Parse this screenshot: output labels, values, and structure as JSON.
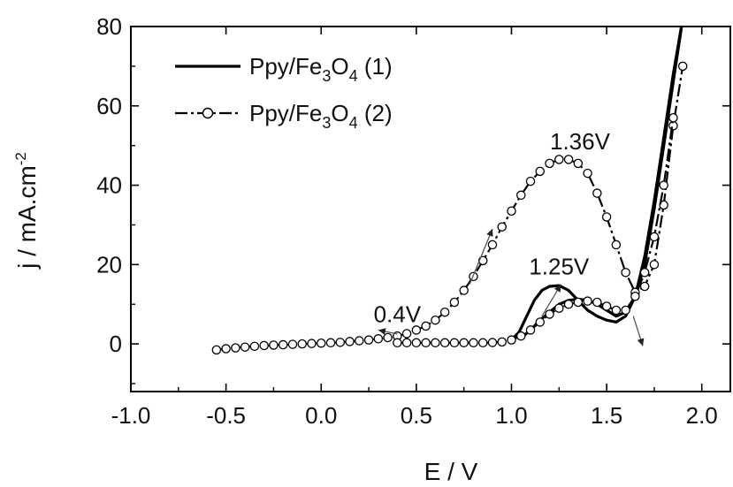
{
  "chart_data": {
    "type": "line",
    "xlabel": "E / V",
    "ylabel_parts": [
      "j / mA.cm",
      "-2"
    ],
    "xlim": [
      -1.0,
      2.15
    ],
    "ylim": [
      -12,
      80
    ],
    "xticks": [
      -1.0,
      -0.5,
      0.0,
      0.5,
      1.0,
      1.5,
      2.0
    ],
    "xtick_labels": [
      "-1.0",
      "-0.5",
      "0.0",
      "0.5",
      "1.0",
      "1.5",
      "2.0"
    ],
    "yticks": [
      0,
      20,
      40,
      60,
      80
    ],
    "ytick_labels": [
      "0",
      "20",
      "40",
      "60",
      "80"
    ],
    "grid": false,
    "legend_position": "top-left",
    "series": [
      {
        "name_parts": [
          "Ppy/Fe",
          "3",
          "O",
          "4",
          " (1)"
        ],
        "style": "solid",
        "segments": [
          {
            "x": [
              1.0,
              1.04,
              1.08,
              1.12,
              1.16,
              1.2,
              1.25,
              1.3,
              1.35,
              1.4,
              1.45,
              1.5,
              1.55,
              1.6,
              1.65,
              1.7,
              1.75,
              1.8,
              1.85,
              1.9
            ],
            "y": [
              1,
              3,
              7,
              11,
              13.5,
              14.5,
              14.7,
              13.5,
              11,
              8.5,
              7,
              6,
              5.5,
              7,
              12,
              22,
              36,
              52,
              68,
              82
            ]
          },
          {
            "x": [
              1.05,
              1.1,
              1.15,
              1.2,
              1.25,
              1.3,
              1.35,
              1.4,
              1.45,
              1.5,
              1.55,
              1.6,
              1.65,
              1.7,
              1.75,
              1.8,
              1.85,
              1.9
            ],
            "y": [
              1.5,
              3.5,
              6,
              8,
              10,
              11,
              11.3,
              11,
              10,
              8.5,
              7,
              8,
              12,
              20,
              34,
              50,
              66,
              82
            ]
          }
        ]
      },
      {
        "name_parts": [
          "Ppy/Fe",
          "3",
          "O",
          "4",
          " (2)"
        ],
        "style": "dash-dot-circle",
        "segments": [
          {
            "x": [
              -0.55,
              -0.5,
              -0.45,
              -0.4,
              -0.35,
              -0.3,
              -0.25,
              -0.2,
              -0.15,
              -0.1,
              -0.05,
              0.0,
              0.05,
              0.1,
              0.15,
              0.2,
              0.25,
              0.3,
              0.35,
              0.4,
              0.45,
              0.5,
              0.55,
              0.6,
              0.65,
              0.7,
              0.75,
              0.8,
              0.85,
              0.9,
              0.95,
              1.0,
              1.05,
              1.1,
              1.15,
              1.2,
              1.25,
              1.3,
              1.35,
              1.4,
              1.45,
              1.5,
              1.55,
              1.6,
              1.65,
              1.7,
              1.75,
              1.8,
              1.85,
              1.9
            ],
            "y": [
              -1.5,
              -1.2,
              -1.0,
              -0.8,
              -0.6,
              -0.4,
              -0.3,
              -0.2,
              -0.1,
              0.0,
              0.1,
              0.2,
              0.3,
              0.4,
              0.6,
              0.8,
              1.0,
              1.3,
              1.6,
              2.0,
              2.6,
              3.5,
              4.5,
              6,
              8,
              10.5,
              13.5,
              17,
              21,
              25,
              29.5,
              33.5,
              37.5,
              41,
              43.5,
              45.5,
              46.5,
              46.5,
              45.5,
              43,
              38,
              32,
              25,
              18,
              13,
              14.5,
              20,
              35,
              55,
              70
            ]
          },
          {
            "x": [
              0.4,
              0.45,
              0.5,
              0.55,
              0.6,
              0.65,
              0.7,
              0.75,
              0.8,
              0.85,
              0.9,
              0.95,
              1.0,
              1.05,
              1.1,
              1.15,
              1.2,
              1.25,
              1.3,
              1.35,
              1.4,
              1.45,
              1.5,
              1.55,
              1.6,
              1.65,
              1.7,
              1.75,
              1.8,
              1.85
            ],
            "y": [
              0.3,
              0.3,
              0.3,
              0.3,
              0.3,
              0.3,
              0.3,
              0.3,
              0.3,
              0.3,
              0.35,
              0.5,
              1.0,
              2.0,
              3.5,
              5.5,
              7.5,
              9,
              10,
              10.5,
              10.8,
              10.5,
              9.5,
              8.5,
              8.5,
              12,
              18,
              27,
              40,
              57
            ]
          }
        ]
      }
    ],
    "annotations": [
      {
        "text": "1.36V",
        "x": 1.36,
        "y": 49
      },
      {
        "text": "1.25V",
        "x": 1.25,
        "y": 17.5
      },
      {
        "text": "0.4V",
        "x": 0.4,
        "y": 5.5
      }
    ],
    "arrows": [
      {
        "x1": 0.4,
        "y1": 2.5,
        "x2": 0.3,
        "y2": 3.5
      },
      {
        "x1": 0.78,
        "y1": 15,
        "x2": 0.9,
        "y2": 29
      },
      {
        "x1": 1.16,
        "y1": 7,
        "x2": 1.26,
        "y2": 15
      },
      {
        "x1": 1.64,
        "y1": 7,
        "x2": 1.69,
        "y2": -0.5
      }
    ]
  }
}
